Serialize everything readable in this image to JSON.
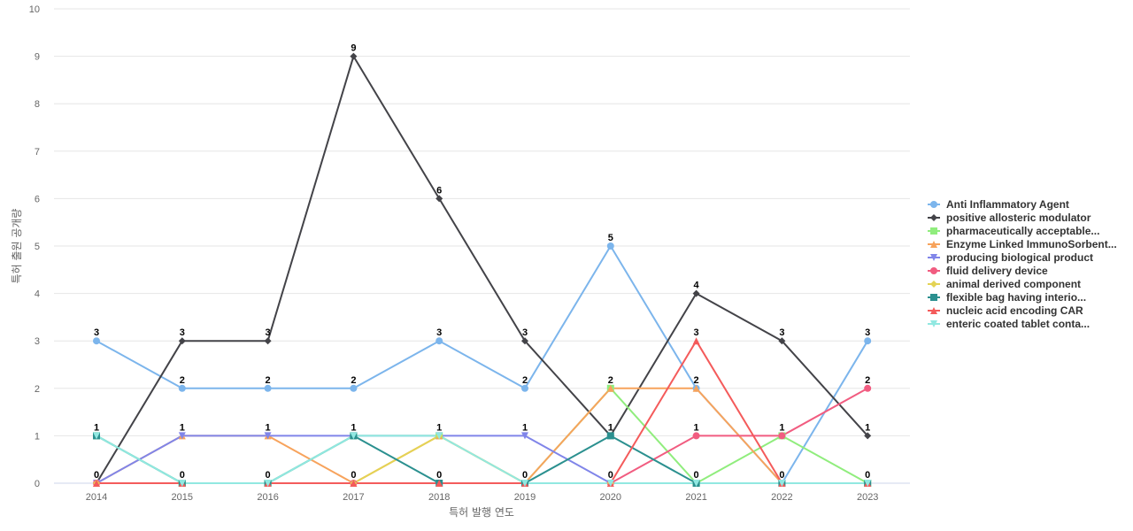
{
  "chart_data": {
    "type": "line",
    "title": "",
    "xlabel": "특허 발행 연도",
    "ylabel": "특허 출원 공개량",
    "ylim": [
      0,
      10
    ],
    "yticks": [
      0,
      1,
      2,
      3,
      4,
      5,
      6,
      7,
      8,
      9,
      10
    ],
    "categories": [
      "2014",
      "2015",
      "2016",
      "2017",
      "2018",
      "2019",
      "2020",
      "2021",
      "2022",
      "2023"
    ],
    "grid": true,
    "legend_position": "right",
    "series": [
      {
        "name": "Anti Inflammatory Agent",
        "color": "#7cb5ec",
        "marker": "circle",
        "values": [
          3,
          2,
          2,
          2,
          3,
          2,
          5,
          2,
          0,
          3
        ]
      },
      {
        "name": "positive allosteric modulator",
        "color": "#434348",
        "marker": "diamond",
        "values": [
          0,
          3,
          3,
          9,
          6,
          3,
          1,
          4,
          3,
          1
        ]
      },
      {
        "name": "pharmaceutically acceptable...",
        "color": "#90ed7d",
        "marker": "square",
        "values": [
          1,
          0,
          0,
          1,
          1,
          0,
          2,
          0,
          1,
          0
        ]
      },
      {
        "name": "Enzyme Linked ImmunoSorbent...",
        "color": "#f7a35c",
        "marker": "triangle",
        "values": [
          0,
          1,
          1,
          0,
          1,
          0,
          2,
          2,
          0,
          0
        ]
      },
      {
        "name": "producing biological product",
        "color": "#8085e9",
        "marker": "triangle-down",
        "values": [
          0,
          1,
          1,
          1,
          1,
          1,
          0,
          0,
          0,
          0
        ]
      },
      {
        "name": "fluid delivery device",
        "color": "#f15c80",
        "marker": "circle",
        "values": [
          0,
          0,
          0,
          0,
          0,
          0,
          0,
          1,
          1,
          2
        ]
      },
      {
        "name": "animal derived component",
        "color": "#e4d354",
        "marker": "diamond",
        "values": [
          0,
          0,
          0,
          0,
          1,
          0,
          0,
          0,
          0,
          0
        ]
      },
      {
        "name": "flexible bag having interio...",
        "color": "#2b908f",
        "marker": "square",
        "values": [
          1,
          0,
          0,
          1,
          0,
          0,
          1,
          0,
          0,
          0
        ]
      },
      {
        "name": "nucleic acid encoding CAR",
        "color": "#f45b5b",
        "marker": "triangle",
        "values": [
          0,
          0,
          0,
          0,
          0,
          0,
          0,
          3,
          0,
          0
        ]
      },
      {
        "name": "enteric coated tablet conta...",
        "color": "#91e8e1",
        "marker": "triangle-down",
        "values": [
          1,
          0,
          0,
          1,
          1,
          0,
          0,
          0,
          0,
          0
        ]
      }
    ],
    "data_labels": [
      {
        "x": "2014",
        "values": [
          3,
          1,
          0
        ]
      },
      {
        "x": "2015",
        "values": [
          3,
          2,
          1,
          0
        ]
      },
      {
        "x": "2016",
        "values": [
          3,
          2,
          1,
          0
        ]
      },
      {
        "x": "2017",
        "values": [
          9,
          2,
          1,
          0
        ]
      },
      {
        "x": "2018",
        "values": [
          6,
          3,
          1,
          0
        ]
      },
      {
        "x": "2019",
        "values": [
          3,
          2,
          1,
          0
        ]
      },
      {
        "x": "2020",
        "values": [
          5,
          2,
          1,
          0
        ]
      },
      {
        "x": "2021",
        "values": [
          4,
          3,
          2,
          1,
          0
        ]
      },
      {
        "x": "2022",
        "values": [
          3,
          1,
          0
        ]
      },
      {
        "x": "2023",
        "values": [
          3,
          2,
          1,
          0
        ]
      }
    ]
  }
}
